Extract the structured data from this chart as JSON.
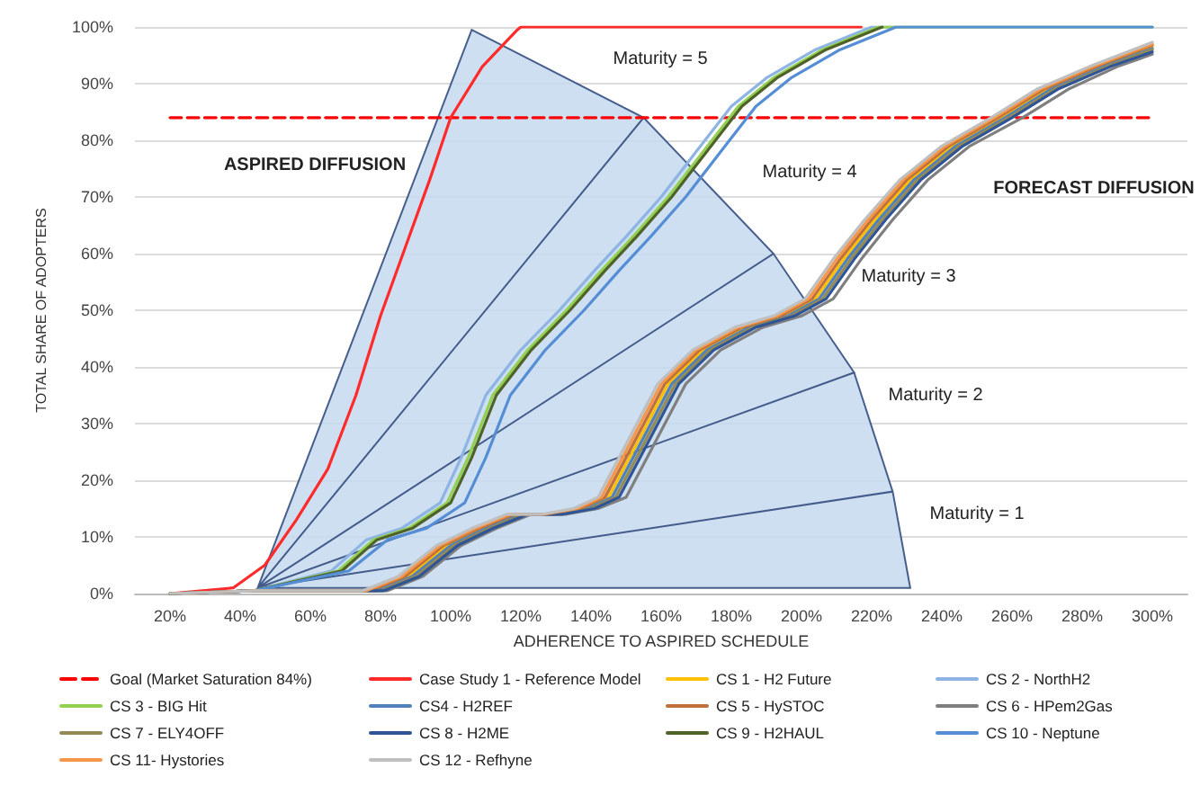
{
  "chart_data": {
    "type": "line",
    "xlabel": "ADHERENCE TO ASPIRED SCHEDULE",
    "ylabel": "TOTAL SHARE OF ADOPTERS",
    "xlim": [
      10,
      310
    ],
    "xticks": [
      {
        "value": 20,
        "label": "20%"
      },
      {
        "value": 40,
        "label": "40%"
      },
      {
        "value": 60,
        "label": "60%"
      },
      {
        "value": 80,
        "label": "80%"
      },
      {
        "value": 100,
        "label": "100%"
      },
      {
        "value": 120,
        "label": "120%"
      },
      {
        "value": 140,
        "label": "140%"
      },
      {
        "value": 160,
        "label": "160%"
      },
      {
        "value": 180,
        "label": "180%"
      },
      {
        "value": 200,
        "label": "200%"
      },
      {
        "value": 220,
        "label": "220%"
      },
      {
        "value": 240,
        "label": "240%"
      },
      {
        "value": 260,
        "label": "260%"
      },
      {
        "value": 280,
        "label": "280%"
      },
      {
        "value": 300,
        "label": "300%"
      }
    ],
    "ylim": [
      0,
      100
    ],
    "yticks": [
      {
        "value": 0,
        "label": "0%"
      },
      {
        "value": 10,
        "label": "10%"
      },
      {
        "value": 20,
        "label": "20%"
      },
      {
        "value": 30,
        "label": "30%"
      },
      {
        "value": 40,
        "label": "40%"
      },
      {
        "value": 50,
        "label": "50%"
      },
      {
        "value": 60,
        "label": "60%"
      },
      {
        "value": 70,
        "label": "70%"
      },
      {
        "value": 80,
        "label": "80%"
      },
      {
        "value": 90,
        "label": "90%"
      },
      {
        "value": 100,
        "label": "100%"
      }
    ],
    "grid": "y",
    "legend": "bottom",
    "marker": "none",
    "line_style": "solid",
    "annotations": [
      "ASPIRED DIFFUSION",
      "FORECAST DIFFUSION",
      "Maturity = 5",
      "Maturity = 4",
      "Maturity = 3",
      "Maturity = 2",
      "Maturity = 1"
    ],
    "series": [
      {
        "type": "area",
        "color": "#c6d9ef",
        "x": [
          45,
          106,
          155,
          45,
          155,
          192,
          45,
          192,
          215,
          45,
          215,
          226,
          45,
          226,
          231,
          45
        ],
        "values": [
          1,
          99.5,
          84,
          1,
          84,
          60,
          1,
          60,
          39,
          1,
          39,
          18,
          1,
          18,
          1,
          1
        ]
      },
      {
        "name": "Goal (Market Saturation 84%)",
        "color": "#ff0000",
        "line_style": "dashed",
        "x": [
          20,
          300
        ],
        "values": [
          84,
          84
        ]
      },
      {
        "name": "Case Study 1 - Reference Model",
        "color": "#ff2a2a",
        "x": [
          20,
          38,
          47,
          56,
          65,
          73,
          80,
          87,
          94,
          100,
          109,
          119,
          120,
          217
        ],
        "values": [
          0,
          1,
          5,
          13,
          22,
          35,
          49,
          61,
          73,
          84,
          93,
          99.5,
          100,
          100
        ]
      },
      {
        "name": "CS 1 - H2 Future",
        "color": "#ffc000",
        "x": [
          78,
          88,
          99,
          109,
          119,
          129,
          138,
          145,
          151,
          162,
          172,
          184,
          195,
          204,
          212,
          221,
          231,
          243,
          257,
          270,
          285,
          300
        ],
        "values": [
          0.5,
          3,
          8.5,
          11.5,
          14,
          14,
          15,
          17,
          24,
          37,
          43,
          47,
          49,
          52,
          59,
          66,
          73,
          79,
          84,
          89,
          93,
          96.5
        ]
      },
      {
        "name": "CS 2 - NorthH2",
        "color": "#8db4e2",
        "x": [
          20,
          44,
          66,
          76,
          86,
          97,
          103,
          110,
          120,
          131,
          141,
          150,
          160,
          170,
          180,
          190,
          204,
          220,
          240,
          300
        ],
        "values": [
          0,
          0.5,
          4,
          9.5,
          11.5,
          16,
          24,
          35,
          43,
          50,
          57,
          63,
          70,
          78,
          86,
          91,
          96,
          100,
          100,
          100
        ]
      },
      {
        "name": "CS 3 - BIG Hit",
        "color": "#92d050",
        "x": [
          20,
          44,
          68,
          78,
          88,
          99,
          105,
          112,
          122,
          133,
          143,
          152,
          162,
          172,
          182,
          192,
          206,
          222,
          240,
          300
        ],
        "values": [
          0,
          0.5,
          4,
          9.5,
          11.5,
          16,
          24,
          35,
          43,
          50,
          57,
          63,
          70,
          78,
          86,
          91,
          96,
          100,
          100,
          100
        ]
      },
      {
        "name": "CS4 - H2REF",
        "color": "#4f81bd",
        "x": [
          20,
          44,
          79,
          89,
          100,
          110,
          120,
          130,
          139,
          146,
          152,
          163,
          173,
          185,
          196,
          205,
          213,
          222,
          232,
          244,
          258,
          271,
          286,
          300
        ],
        "values": [
          0,
          0.5,
          0.5,
          3,
          8.5,
          11.5,
          14,
          14,
          15,
          17,
          24,
          37,
          43,
          47,
          49,
          52,
          59,
          66,
          73,
          79,
          84,
          89,
          93,
          96.2
        ]
      },
      {
        "name": "CS 5 - HySTOC",
        "color": "#c0703a",
        "x": [
          20,
          44,
          77,
          87,
          98,
          108,
          118,
          128,
          137,
          144,
          150,
          161,
          171,
          183,
          194,
          203,
          211,
          220,
          230,
          242,
          256,
          269,
          284,
          300
        ],
        "values": [
          0,
          0.5,
          0.5,
          3,
          8.5,
          11.5,
          14,
          14,
          15,
          17,
          24,
          37,
          43,
          47,
          49,
          52,
          59,
          66,
          73,
          79,
          84,
          89,
          93,
          96.8
        ]
      },
      {
        "name": "CS 6 - HPem2Gas",
        "color": "#7f7f7f",
        "x": [
          20,
          44,
          82,
          92,
          103,
          113,
          123,
          133,
          142,
          150,
          156,
          167,
          177,
          189,
          200,
          209,
          217,
          226,
          236,
          248,
          263,
          276,
          290,
          300
        ],
        "values": [
          0,
          0.5,
          0.5,
          3,
          8.5,
          11.5,
          14,
          14,
          15,
          17,
          24,
          37,
          43,
          47,
          49,
          52,
          59,
          66,
          73,
          79,
          84,
          89,
          93,
          95.2
        ]
      },
      {
        "name": "CS 7 - ELY4OFF",
        "color": "#948a54",
        "x": [
          20,
          44,
          80,
          90,
          101,
          111,
          121,
          131,
          140,
          147,
          153,
          164,
          174,
          186,
          197,
          206,
          214,
          223,
          233,
          245,
          259,
          272,
          287,
          300
        ],
        "values": [
          0,
          0.5,
          0.5,
          3,
          8.5,
          11.5,
          14,
          14,
          15,
          17,
          24,
          37,
          43,
          47,
          49,
          52,
          59,
          66,
          73,
          79,
          84,
          89,
          93,
          96
        ]
      },
      {
        "name": "CS 8 - H2ME",
        "color": "#2f5597",
        "x": [
          20,
          44,
          81,
          91,
          102,
          112,
          122,
          132,
          141,
          148,
          154,
          165,
          175,
          187,
          198,
          207,
          215,
          224,
          234,
          246,
          260,
          273,
          288,
          300
        ],
        "values": [
          0,
          0.5,
          0.5,
          3,
          8.5,
          11.5,
          14,
          14,
          15,
          17,
          24,
          37,
          43,
          47,
          49,
          52,
          59,
          66,
          73,
          79,
          84,
          89,
          93,
          95.6
        ]
      },
      {
        "name": "CS 9 - H2HAUL",
        "color": "#4f6228",
        "x": [
          20,
          44,
          69,
          79,
          89,
          100,
          106,
          113,
          123,
          134,
          144,
          153,
          163,
          173,
          183,
          193,
          207,
          223
        ],
        "values": [
          0,
          0.5,
          4,
          9.5,
          11.5,
          16,
          24,
          35,
          43,
          50,
          57,
          63,
          70,
          78,
          86,
          91,
          96,
          100
        ]
      },
      {
        "name": "CS 10 - Neptune",
        "color": "#558ed5",
        "x": [
          20,
          44,
          71,
          82,
          93,
          104,
          110,
          117,
          127,
          138,
          148,
          157,
          167,
          177,
          187,
          197,
          211,
          227,
          245,
          300
        ],
        "values": [
          0,
          0.5,
          4,
          9.5,
          11.5,
          16,
          24,
          35,
          43,
          50,
          57,
          63,
          70,
          78,
          86,
          91,
          96,
          100,
          100,
          100
        ]
      },
      {
        "name": "CS 11- Hystories",
        "color": "#f79646",
        "x": [
          20,
          44,
          76,
          86,
          97,
          107,
          117,
          127,
          136,
          143,
          149,
          160,
          170,
          182,
          193,
          202,
          210,
          219,
          229,
          241,
          255,
          268,
          283,
          300
        ],
        "values": [
          0,
          0.5,
          0.5,
          3,
          8.5,
          11.5,
          14,
          14,
          15,
          17,
          24,
          37,
          43,
          47,
          49,
          52,
          59,
          66,
          73,
          79,
          84,
          89,
          93,
          97
        ]
      },
      {
        "name": "CS 12 - Refhyne",
        "color": "#bfbfbf",
        "x": [
          20,
          44,
          75,
          85,
          96,
          106,
          116,
          126,
          135,
          142,
          148,
          159,
          169,
          181,
          192,
          201,
          209,
          218,
          228,
          240,
          254,
          267,
          282,
          300
        ],
        "values": [
          0,
          0.5,
          0.5,
          3,
          8.5,
          11.5,
          14,
          14,
          15,
          17,
          24,
          37,
          43,
          47,
          49,
          52,
          59,
          66,
          73,
          79,
          84,
          89,
          93,
          97.3
        ]
      }
    ]
  }
}
